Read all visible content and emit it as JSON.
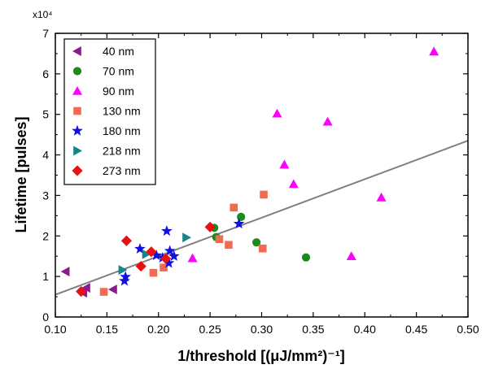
{
  "chart_data": {
    "type": "scatter",
    "xlabel": "1/threshold [(μJ/mm²)⁻¹]",
    "ylabel": "Lifetime [pulses]",
    "y_multiplier_label": "x10⁴",
    "xlim": [
      0.1,
      0.5
    ],
    "ylim": [
      0,
      7
    ],
    "x_ticks": [
      "0.10",
      "0.15",
      "0.20",
      "0.25",
      "0.30",
      "0.35",
      "0.40",
      "0.45",
      "0.50"
    ],
    "y_ticks": [
      "0",
      "1",
      "2",
      "3",
      "4",
      "5",
      "6",
      "7"
    ],
    "grid": false,
    "legend_position": "top-left",
    "series": [
      {
        "name": "40 nm",
        "marker": "triangle-left",
        "color": "#8B1A8B",
        "points": [
          [
            0.11,
            1.12
          ],
          [
            0.127,
            0.6
          ],
          [
            0.13,
            0.72
          ],
          [
            0.156,
            0.68
          ]
        ]
      },
      {
        "name": "70 nm",
        "marker": "circle",
        "color": "#1E8A1E",
        "points": [
          [
            0.254,
            2.2
          ],
          [
            0.256,
            1.97
          ],
          [
            0.28,
            2.47
          ],
          [
            0.295,
            1.84
          ],
          [
            0.343,
            1.47
          ]
        ]
      },
      {
        "name": "90 nm",
        "marker": "triangle-up",
        "color": "#FF00FF",
        "points": [
          [
            0.233,
            1.45
          ],
          [
            0.315,
            5.02
          ],
          [
            0.322,
            3.76
          ],
          [
            0.331,
            3.28
          ],
          [
            0.364,
            4.82
          ],
          [
            0.387,
            1.5
          ],
          [
            0.416,
            2.95
          ],
          [
            0.467,
            6.55
          ]
        ]
      },
      {
        "name": "130 nm",
        "marker": "square",
        "color": "#F26B50",
        "points": [
          [
            0.147,
            0.62
          ],
          [
            0.195,
            1.09
          ],
          [
            0.205,
            1.22
          ],
          [
            0.259,
            1.92
          ],
          [
            0.268,
            1.78
          ],
          [
            0.273,
            2.7
          ],
          [
            0.301,
            1.69
          ],
          [
            0.302,
            3.02
          ]
        ]
      },
      {
        "name": "180 nm",
        "marker": "star",
        "color": "#1010E0",
        "points": [
          [
            0.167,
            0.89
          ],
          [
            0.168,
            0.99
          ],
          [
            0.182,
            1.68
          ],
          [
            0.198,
            1.52
          ],
          [
            0.204,
            1.46
          ],
          [
            0.208,
            2.12
          ],
          [
            0.21,
            1.33
          ],
          [
            0.211,
            1.63
          ],
          [
            0.215,
            1.5
          ],
          [
            0.278,
            2.3
          ]
        ]
      },
      {
        "name": "218 nm",
        "marker": "triangle-right",
        "color": "#158585",
        "points": [
          [
            0.165,
            1.16
          ],
          [
            0.188,
            1.55
          ],
          [
            0.227,
            1.96
          ]
        ]
      },
      {
        "name": "273 nm",
        "marker": "diamond",
        "color": "#E81010",
        "points": [
          [
            0.125,
            0.63
          ],
          [
            0.169,
            1.88
          ],
          [
            0.183,
            1.25
          ],
          [
            0.193,
            1.61
          ],
          [
            0.207,
            1.44
          ],
          [
            0.25,
            2.22
          ]
        ]
      }
    ],
    "fit_line": {
      "color": "#808080",
      "points": [
        [
          0.1,
          0.55
        ],
        [
          0.5,
          4.35
        ]
      ]
    }
  }
}
